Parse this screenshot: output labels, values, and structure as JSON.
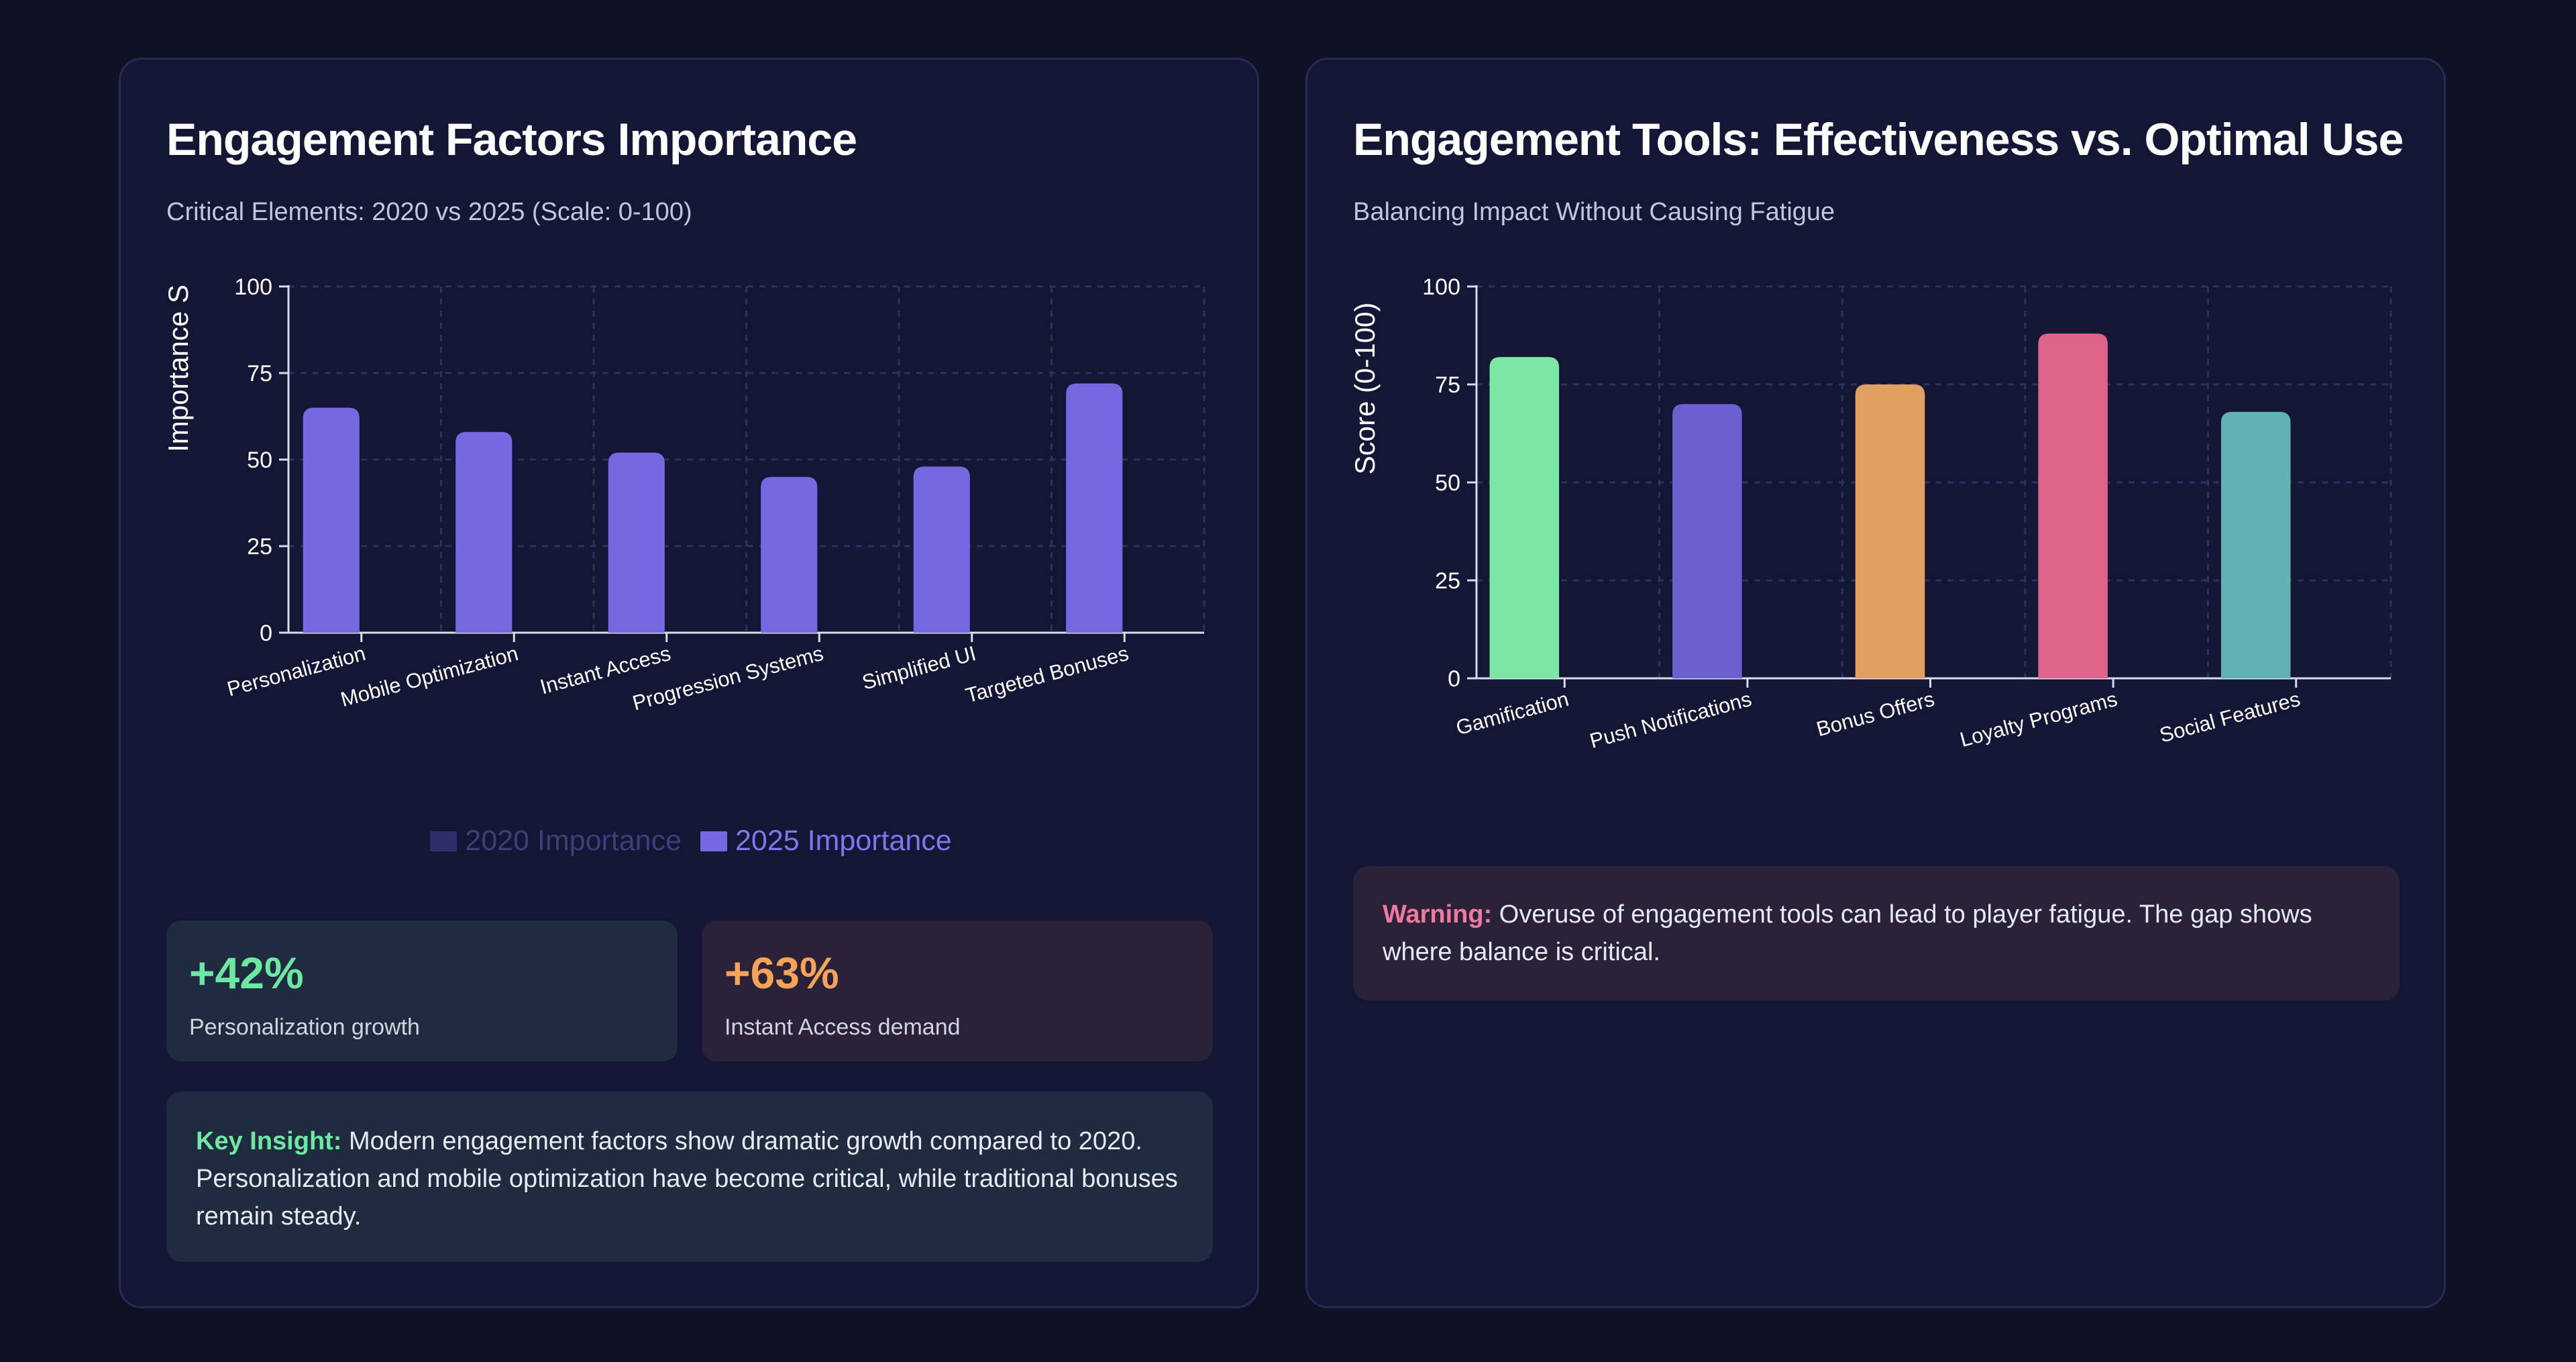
{
  "left": {
    "title": "Engagement Factors Importance",
    "subtitle": "Critical Elements: 2020 vs 2025 (Scale: 0-100)",
    "legend": [
      {
        "label": "2020 Importance",
        "color": "#2e2f6a",
        "text_color": "#3e3f7a"
      },
      {
        "label": "2025 Importance",
        "color": "#7668e0",
        "text_color": "#8474ee"
      }
    ],
    "stats": [
      {
        "value": "+42%",
        "label": "Personalization growth",
        "color": "#6ee7a3"
      },
      {
        "value": "+63%",
        "label": "Instant Access demand",
        "color": "#f5a35b"
      }
    ],
    "insight": {
      "label": "Key Insight:",
      "text": " Modern engagement factors show dramatic growth compared to 2020. Personalization and mobile optimization have become critical, while traditional bonuses remain steady."
    }
  },
  "right": {
    "title": "Engagement Tools: Effectiveness vs. Optimal Use",
    "subtitle": "Balancing Impact Without Causing Fatigue",
    "warning": {
      "label": "Warning:",
      "text": " Overuse of engagement tools can lead to player fatigue. The gap shows where balance is critical."
    }
  },
  "chart_data": [
    {
      "type": "bar",
      "title": "Engagement Factors Importance",
      "subtitle": "Critical Elements: 2020 vs 2025 (Scale: 0-100)",
      "ylabel": "Importance S",
      "xlabel": "",
      "ylim": [
        0,
        100
      ],
      "yticks": [
        0,
        25,
        50,
        75,
        100
      ],
      "grid": true,
      "categories": [
        "Personalization",
        "Mobile Optimization",
        "Instant Access",
        "Progression Systems",
        "Simplified UI",
        "Targeted Bonuses"
      ],
      "series": [
        {
          "name": "2020 Importance",
          "color": "#2e2f6a",
          "values": [
            0,
            0,
            0,
            0,
            0,
            0
          ]
        },
        {
          "name": "2025 Importance",
          "color": "#7668e0",
          "values": [
            65,
            58,
            52,
            45,
            48,
            72
          ]
        }
      ]
    },
    {
      "type": "bar",
      "title": "Engagement Tools: Effectiveness vs. Optimal Use",
      "subtitle": "Balancing Impact Without Causing Fatigue",
      "ylabel": "Score (0-100)",
      "xlabel": "",
      "ylim": [
        0,
        100
      ],
      "yticks": [
        0,
        25,
        50,
        75,
        100
      ],
      "grid": true,
      "categories": [
        "Gamification",
        "Push Notifications",
        "Bonus Offers",
        "Loyalty Programs",
        "Social Features"
      ],
      "values": [
        82,
        70,
        75,
        88,
        68
      ],
      "colors": [
        "#7ce6a5",
        "#6c5fd0",
        "#e0a062",
        "#dd6388",
        "#61b3b3"
      ]
    }
  ]
}
